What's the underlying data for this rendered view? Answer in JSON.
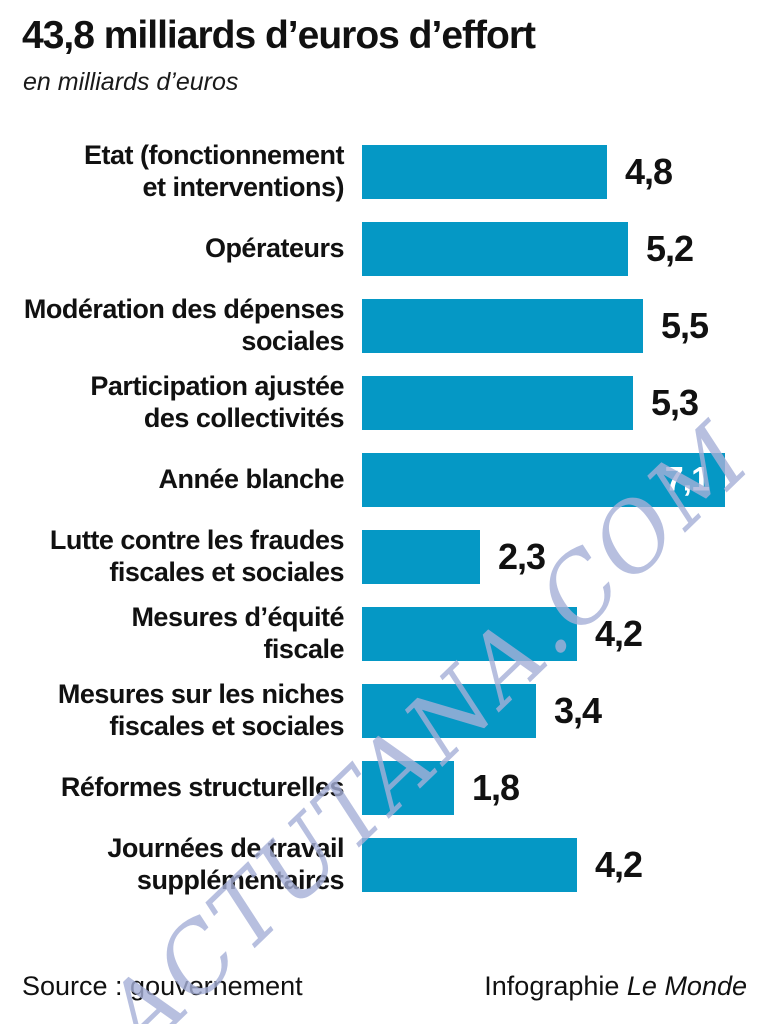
{
  "header": {
    "title": "43,8 milliards d’euros d’effort",
    "subtitle": "en milliards d’euros"
  },
  "chart_data": {
    "type": "bar",
    "orientation": "horizontal",
    "title": "43,8 milliards d’euros d’effort",
    "subtitle": "en milliards d’euros",
    "unit": "milliards d’euros",
    "xlim": [
      0,
      7.1
    ],
    "grid": false,
    "legend": false,
    "bar_color": "#0598c5",
    "categories": [
      "Etat (fonctionnement et interventions)",
      "Opérateurs",
      "Modération des dépenses sociales",
      "Participation ajustée des collectivités",
      "Année blanche",
      "Lutte contre les fraudes fiscales et sociales",
      "Mesures d’équité fiscale",
      "Mesures sur les niches fiscales et sociales",
      "Réformes structurelles",
      "Journées de travail supplémentaires"
    ],
    "label_lines": [
      [
        "Etat (fonctionnement",
        "et interventions)"
      ],
      [
        "Opérateurs"
      ],
      [
        "Modération des dépenses",
        "sociales"
      ],
      [
        "Participation ajustée",
        "des collectivités"
      ],
      [
        "Année blanche"
      ],
      [
        "Lutte contre les fraudes",
        "fiscales et sociales"
      ],
      [
        "Mesures d’équité",
        "fiscale"
      ],
      [
        "Mesures sur les niches",
        "fiscales et sociales"
      ],
      [
        "Réformes structurelles"
      ],
      [
        "Journées de travail",
        "supplémentaires"
      ]
    ],
    "values": [
      4.8,
      5.2,
      5.5,
      5.3,
      7.1,
      2.3,
      4.2,
      3.4,
      1.8,
      4.2
    ],
    "value_labels": [
      "4,8",
      "5,2",
      "5,5",
      "5,3",
      "7,1",
      "2,3",
      "4,2",
      "3,4",
      "1,8",
      "4,2"
    ],
    "value_inside": [
      false,
      false,
      false,
      false,
      true,
      false,
      false,
      false,
      false,
      false
    ]
  },
  "footer": {
    "source": "Source : gouvernement",
    "credit": "Infographie",
    "credit_italic": "Le Monde"
  },
  "watermark": {
    "text": "ACTUTANA.COM",
    "color": "#a6b0d8"
  }
}
